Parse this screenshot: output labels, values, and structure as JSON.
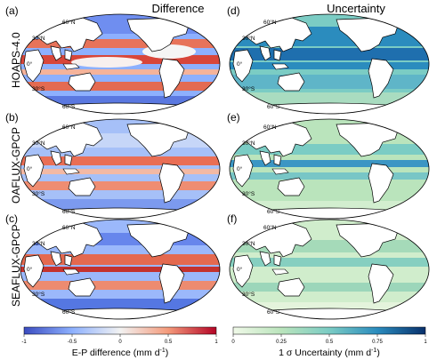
{
  "columns": {
    "left": "Difference",
    "right": "Uncertainty"
  },
  "rows": [
    "HOAPS-4.0",
    "OAFLUX-GPCP",
    "SEAFLUX-GPCP"
  ],
  "panel_letters": [
    "(a)",
    "(b)",
    "(c)",
    "(d)",
    "(e)",
    "(f)"
  ],
  "lat_labels": {
    "n60": "60°N",
    "n30": "30°N",
    "eq": "0°",
    "s30": "30°S",
    "s60": "60°S"
  },
  "colorbars": {
    "difference": {
      "ticks": [
        "-1",
        "-0.5",
        "0",
        "0.5",
        "1"
      ],
      "label_prefix": "E-P difference (mm d",
      "label_sup": "-1",
      "label_suffix": ")",
      "colors": [
        "#3b4cc0",
        "#8db0fe",
        "#f7f7f7",
        "#f49a7b",
        "#b40426"
      ]
    },
    "uncertainty": {
      "ticks": [
        "0",
        "0.25",
        "0.5",
        "0.75",
        "1"
      ],
      "label_prefix": "1 σ Uncertainty (mm d",
      "label_sup": "-1",
      "label_suffix": ")",
      "colors": [
        "#f0f9e8",
        "#bae4bc",
        "#7bccc4",
        "#2b8cbe",
        "#08306b"
      ]
    }
  },
  "land_color": "#ffffff"
}
